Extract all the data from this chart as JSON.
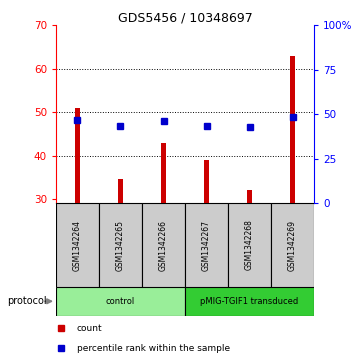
{
  "title": "GDS5456 / 10348697",
  "samples": [
    "GSM1342264",
    "GSM1342265",
    "GSM1342266",
    "GSM1342267",
    "GSM1342268",
    "GSM1342269"
  ],
  "counts": [
    51,
    34.5,
    43,
    39,
    32,
    63
  ],
  "percentile_ranks": [
    47,
    43.5,
    46,
    43.5,
    43,
    48.5
  ],
  "ylim_left": [
    29,
    70
  ],
  "ylim_right": [
    0,
    100
  ],
  "left_yticks": [
    30,
    40,
    50,
    60,
    70
  ],
  "right_yticks": [
    0,
    25,
    50,
    75,
    100
  ],
  "right_yticklabels": [
    "0",
    "25",
    "50",
    "75",
    "100%"
  ],
  "bar_color": "#cc0000",
  "dot_color": "#0000cc",
  "bar_bottom": 29,
  "protocol_groups": [
    {
      "label": "control",
      "samples": [
        0,
        1,
        2
      ],
      "color": "#99ee99"
    },
    {
      "label": "pMIG-TGIF1 transduced",
      "samples": [
        3,
        4,
        5
      ],
      "color": "#33cc33"
    }
  ],
  "legend_items": [
    {
      "label": "count",
      "color": "#cc0000"
    },
    {
      "label": "percentile rank within the sample",
      "color": "#0000cc"
    }
  ],
  "gridline_values": [
    40,
    50,
    60
  ],
  "protocol_label": "protocol",
  "background_color": "#ffffff",
  "sample_box_color": "#cccccc",
  "bar_width": 0.12
}
